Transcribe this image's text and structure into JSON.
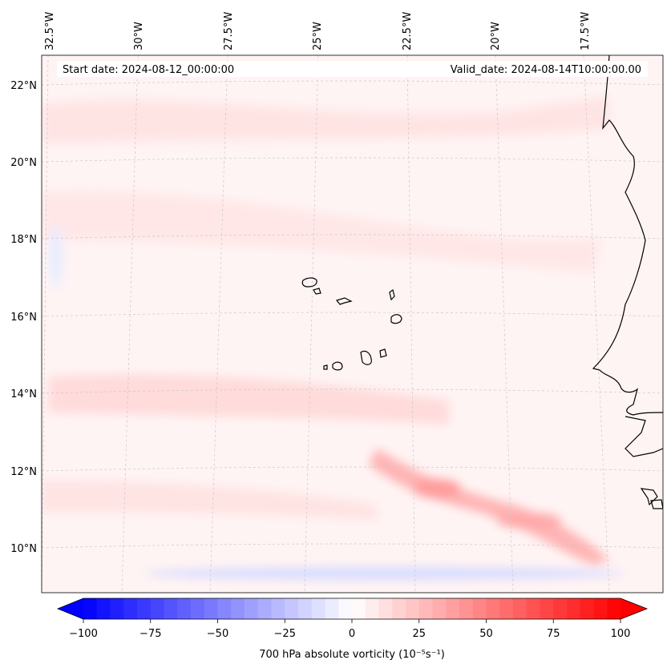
{
  "header": {
    "start_date": "Start date: 2024-08-12_00:00:00",
    "valid_date": "Valid_date: 2024-08-14T10:00:00.00"
  },
  "map": {
    "lon_labels": [
      "32.5°W",
      "30°W",
      "27.5°W",
      "25°W",
      "22.5°W",
      "20°W",
      "17.5°W"
    ],
    "lat_labels": [
      "22°N",
      "20°N",
      "18°N",
      "16°N",
      "14°N",
      "12°N",
      "10°N"
    ],
    "gridlines": "dashed",
    "extent_lon": [
      -32.5,
      -15.0
    ],
    "extent_lat": [
      8.8,
      22.8
    ]
  },
  "colorbar": {
    "label": "700 hPa absolute vorticity (10⁻⁵s⁻¹)",
    "ticks": [
      "−100",
      "−75",
      "−50",
      "−25",
      "0",
      "25",
      "50",
      "75",
      "100"
    ],
    "min": -100,
    "max": 100,
    "colormap": "bwr",
    "extend": "both"
  },
  "colors": {
    "neg": "#0000ff",
    "mid": "#ffffff",
    "pos": "#ff0000",
    "coast": "#000000"
  }
}
